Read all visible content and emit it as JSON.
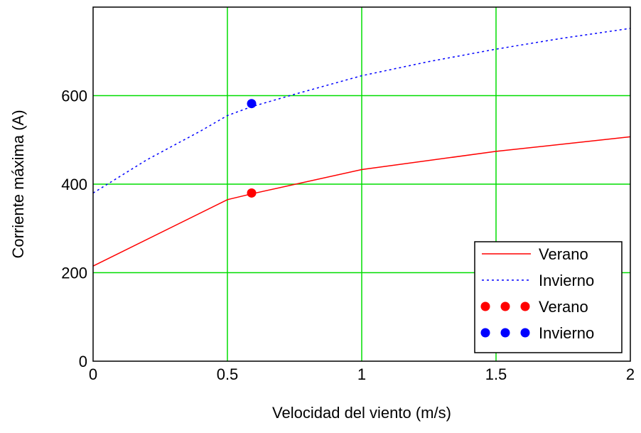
{
  "chart_data": {
    "type": "line",
    "title": "",
    "xlabel": "Velocidad del viento (m/s)",
    "ylabel": "Corriente máxima (A)",
    "xlim": [
      0,
      2
    ],
    "ylim": [
      0,
      800
    ],
    "xticks": [
      0,
      0.5,
      1,
      1.5,
      2
    ],
    "xtick_labels": [
      "0",
      "0.5",
      "1",
      "1.5",
      "2"
    ],
    "yticks": [
      0,
      200,
      400,
      600
    ],
    "ytick_labels": [
      "0",
      "200",
      "400",
      "600"
    ],
    "grid": true,
    "legend_position": "bottom-right",
    "series": [
      {
        "name": "Verano",
        "kind": "line",
        "style": "solid",
        "color": "#ff0000",
        "x": [
          0,
          0.5,
          0.59,
          1,
          1.5,
          2
        ],
        "y": [
          215,
          365,
          378,
          433,
          474,
          507
        ]
      },
      {
        "name": "Invierno",
        "kind": "line",
        "style": "dotted",
        "color": "#0000ff",
        "x": [
          0,
          0.2,
          0.4,
          0.5,
          0.59,
          0.75,
          1,
          1.25,
          1.5,
          1.75,
          2
        ],
        "y": [
          380,
          455,
          520,
          555,
          575,
          603,
          645,
          677,
          705,
          730,
          752
        ]
      },
      {
        "name": "Verano",
        "kind": "points",
        "color": "#ff0000",
        "x": [
          0.59
        ],
        "y": [
          380
        ]
      },
      {
        "name": "Invierno",
        "kind": "points",
        "color": "#0000ff",
        "x": [
          0.59
        ],
        "y": [
          582
        ]
      }
    ]
  },
  "colors": {
    "grid": "#00dd00",
    "frame": "#000000"
  }
}
